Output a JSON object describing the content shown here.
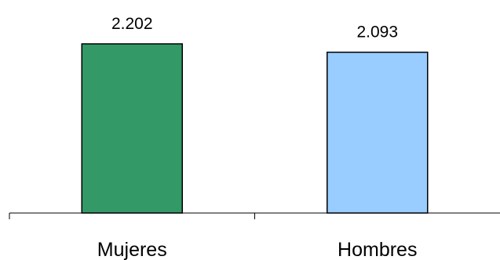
{
  "chart_data": {
    "type": "bar",
    "categories": [
      "Mujeres",
      "Hombres"
    ],
    "values": [
      2.202,
      2.093
    ],
    "value_labels": [
      "2.202",
      "2.093"
    ],
    "colors": [
      "#339966",
      "#99CCFF"
    ],
    "title": "",
    "xlabel": "",
    "ylabel": "",
    "ylim": [
      0,
      2.202
    ],
    "grid": false,
    "legend": "none"
  }
}
